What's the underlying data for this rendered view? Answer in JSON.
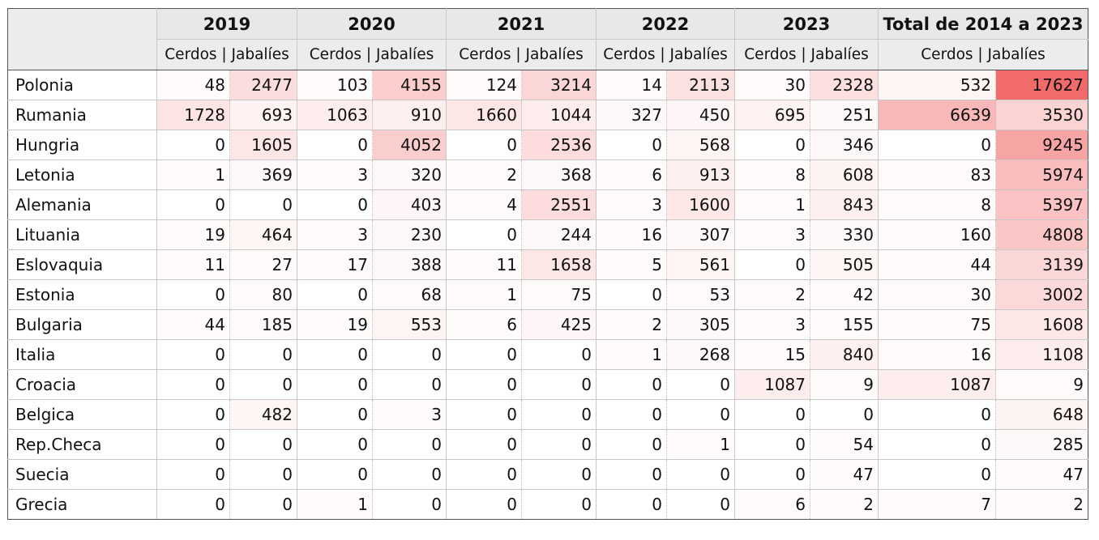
{
  "table": {
    "years": [
      "2019",
      "2020",
      "2021",
      "2022",
      "2023",
      "Total de 2014 a 2023"
    ],
    "sublabel": "Cerdos | Jabalíes",
    "rows": [
      {
        "country": "Polonia",
        "values": [
          48,
          2477,
          103,
          4155,
          124,
          3214,
          14,
          2113,
          30,
          2328,
          532,
          17627
        ]
      },
      {
        "country": "Rumania",
        "values": [
          1728,
          693,
          1063,
          910,
          1660,
          1044,
          327,
          450,
          695,
          251,
          6639,
          3530
        ]
      },
      {
        "country": "Hungria",
        "values": [
          0,
          1605,
          0,
          4052,
          0,
          2536,
          0,
          568,
          0,
          346,
          0,
          9245
        ]
      },
      {
        "country": "Letonia",
        "values": [
          1,
          369,
          3,
          320,
          2,
          368,
          6,
          913,
          8,
          608,
          83,
          5974
        ]
      },
      {
        "country": "Alemania",
        "values": [
          0,
          0,
          0,
          403,
          4,
          2551,
          3,
          1600,
          1,
          843,
          8,
          5397
        ]
      },
      {
        "country": "Lituania",
        "values": [
          19,
          464,
          3,
          230,
          0,
          244,
          16,
          307,
          3,
          330,
          160,
          4808
        ]
      },
      {
        "country": "Eslovaquia",
        "values": [
          11,
          27,
          17,
          388,
          11,
          1658,
          5,
          561,
          0,
          505,
          44,
          3139
        ]
      },
      {
        "country": "Estonia",
        "values": [
          0,
          80,
          0,
          68,
          1,
          75,
          0,
          53,
          2,
          42,
          30,
          3002
        ]
      },
      {
        "country": "Bulgaria",
        "values": [
          44,
          185,
          19,
          553,
          6,
          425,
          2,
          305,
          3,
          155,
          75,
          1608
        ]
      },
      {
        "country": "Italia",
        "values": [
          0,
          0,
          0,
          0,
          0,
          0,
          1,
          268,
          15,
          840,
          16,
          1108
        ]
      },
      {
        "country": "Croacia",
        "values": [
          0,
          0,
          0,
          0,
          0,
          0,
          0,
          0,
          1087,
          9,
          1087,
          9
        ]
      },
      {
        "country": "Belgica",
        "values": [
          0,
          482,
          0,
          3,
          0,
          0,
          0,
          0,
          0,
          0,
          0,
          648
        ]
      },
      {
        "country": "Rep.Checa",
        "values": [
          0,
          0,
          0,
          0,
          0,
          0,
          0,
          1,
          0,
          54,
          0,
          285
        ]
      },
      {
        "country": "Suecia",
        "values": [
          0,
          0,
          0,
          0,
          0,
          0,
          0,
          0,
          0,
          47,
          0,
          47
        ]
      },
      {
        "country": "Grecia",
        "values": [
          0,
          0,
          1,
          0,
          0,
          0,
          0,
          0,
          6,
          2,
          7,
          2
        ]
      }
    ]
  },
  "colors": {
    "heat_max": "#f26b6b",
    "heat_min": "#ffffff",
    "header_bg": "#e8e8e8"
  }
}
